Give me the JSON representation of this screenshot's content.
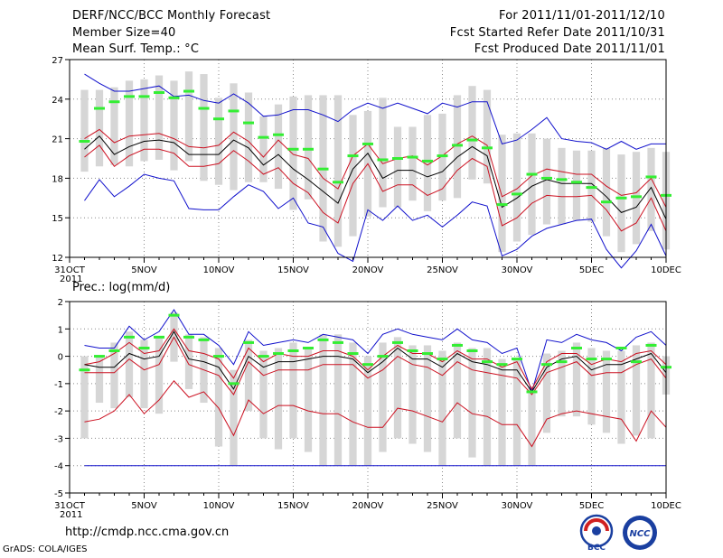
{
  "header": {
    "title": "DERF/NCC/BCC Monthly Forecast",
    "member_size": "Member Size=40",
    "variable": "Mean Surf. Temp.: °C",
    "period": "For 2011/11/01-2011/12/10",
    "started": "Fcst Started Refer Date 2011/10/31",
    "produced": "Fcst Produced Date 2011/11/01"
  },
  "footer": {
    "url": "http://cmdp.ncc.cma.gov.cn",
    "grads": "GrADS: COLA/IGES",
    "logo_left_text": "BCC",
    "logo_right_text": "NCC"
  },
  "colors": {
    "box": "#d6d6d6",
    "mean": "#000000",
    "ci": "#cc1020",
    "envelope": "#1010cc",
    "ctrl": "#33ee33"
  },
  "chart_data": [
    {
      "type": "line",
      "title": "Mean Surf. Temp.: °C",
      "x_tick_labels": [
        "31OCT",
        "5NOV",
        "10NOV",
        "15NOV",
        "20NOV",
        "25NOV",
        "30NOV",
        "5DEC",
        "10DEC"
      ],
      "x_tick_days": [
        0,
        5,
        10,
        15,
        20,
        25,
        30,
        35,
        40
      ],
      "x_sublabel": "2011",
      "x_range": [
        0,
        40
      ],
      "ylim": [
        12,
        27
      ],
      "y_ticks": [
        12,
        15,
        18,
        21,
        24,
        27
      ],
      "x": [
        1,
        2,
        3,
        4,
        5,
        6,
        7,
        8,
        9,
        10,
        11,
        12,
        13,
        14,
        15,
        16,
        17,
        18,
        19,
        20,
        21,
        22,
        23,
        24,
        25,
        26,
        27,
        28,
        29,
        30,
        31,
        32,
        33,
        34,
        35,
        36,
        37,
        38,
        39,
        40
      ],
      "series": [
        {
          "name": "Max",
          "values": [
            25.9,
            25.2,
            24.6,
            24.6,
            24.8,
            25.0,
            24.2,
            24.3,
            23.9,
            23.7,
            24.4,
            23.7,
            22.7,
            22.8,
            23.2,
            23.2,
            22.8,
            22.3,
            23.2,
            23.7,
            23.3,
            23.7,
            23.3,
            22.9,
            23.7,
            23.4,
            23.8,
            23.8,
            20.6,
            20.9,
            21.7,
            22.6,
            21.0,
            20.8,
            20.7,
            20.2,
            20.8,
            20.2,
            20.6,
            20.6
          ]
        },
        {
          "name": "Upper",
          "values": [
            21.0,
            21.7,
            20.7,
            21.2,
            21.3,
            21.4,
            21.0,
            20.4,
            20.3,
            20.5,
            21.5,
            20.8,
            19.6,
            20.9,
            19.8,
            19.5,
            18.0,
            17.2,
            19.7,
            20.6,
            19.1,
            19.5,
            19.7,
            19.0,
            19.7,
            20.6,
            21.2,
            20.5,
            16.6,
            17.2,
            18.2,
            18.7,
            18.5,
            18.3,
            18.3,
            17.4,
            16.7,
            16.9,
            18.0,
            15.8
          ]
        },
        {
          "name": "Mean",
          "values": [
            20.2,
            21.2,
            19.8,
            20.4,
            20.8,
            20.9,
            20.7,
            19.8,
            19.8,
            19.8,
            20.9,
            20.3,
            19.0,
            19.8,
            18.7,
            17.9,
            17.0,
            16.1,
            18.7,
            19.9,
            18.0,
            18.6,
            18.6,
            18.1,
            18.5,
            19.6,
            20.4,
            19.7,
            15.8,
            16.5,
            17.4,
            17.9,
            17.6,
            17.6,
            17.6,
            16.6,
            15.4,
            15.8,
            17.3,
            14.9
          ]
        },
        {
          "name": "Lower",
          "values": [
            19.6,
            20.5,
            18.9,
            19.7,
            20.2,
            20.2,
            19.9,
            18.9,
            18.9,
            19.1,
            20.1,
            19.3,
            18.3,
            18.8,
            17.6,
            16.9,
            15.4,
            14.6,
            17.6,
            19.1,
            17.0,
            17.5,
            17.5,
            16.7,
            17.2,
            18.6,
            19.5,
            18.9,
            14.4,
            15.0,
            16.1,
            16.7,
            16.6,
            16.6,
            16.7,
            15.6,
            14.0,
            14.6,
            16.5,
            14.0
          ]
        },
        {
          "name": "Min",
          "values": [
            16.3,
            17.9,
            16.6,
            17.4,
            18.3,
            18.0,
            17.8,
            15.7,
            15.6,
            15.6,
            16.6,
            17.5,
            17.0,
            15.7,
            16.5,
            14.6,
            14.3,
            12.3,
            11.7,
            15.6,
            14.8,
            15.9,
            14.8,
            15.2,
            14.3,
            15.2,
            16.2,
            15.9,
            12.1,
            12.6,
            13.6,
            14.2,
            14.5,
            14.8,
            14.9,
            12.6,
            11.2,
            12.5,
            14.5,
            12.1
          ]
        },
        {
          "name": "Ctrl",
          "values": [
            20.8,
            23.3,
            23.8,
            24.2,
            24.2,
            24.5,
            24.1,
            24.6,
            23.3,
            22.5,
            23.1,
            22.2,
            21.1,
            21.3,
            20.2,
            20.2,
            18.7,
            17.7,
            19.7,
            20.6,
            19.4,
            19.5,
            19.6,
            19.3,
            19.7,
            20.5,
            20.9,
            20.3,
            16.0,
            16.8,
            18.3,
            18.0,
            17.9,
            17.7,
            17.3,
            16.2,
            16.5,
            16.6,
            18.1,
            16.7
          ]
        },
        {
          "name": "Box high",
          "values": [
            24.7,
            24.7,
            24.9,
            25.4,
            25.5,
            25.8,
            25.4,
            26.1,
            25.9,
            24.1,
            25.2,
            24.5,
            22.7,
            23.6,
            24.2,
            24.3,
            24.3,
            24.3,
            22.8,
            23.1,
            24.1,
            21.9,
            21.9,
            22.8,
            22.9,
            24.3,
            25.0,
            24.7,
            21.3,
            21.4,
            21.4,
            21.0,
            20.3,
            20.1,
            20.1,
            20.3,
            19.8,
            20.0,
            20.3,
            20.0
          ]
        },
        {
          "name": "Box low",
          "values": [
            18.5,
            18.9,
            19.0,
            18.9,
            19.3,
            19.4,
            18.6,
            19.3,
            17.8,
            17.5,
            17.1,
            17.7,
            17.7,
            17.2,
            15.6,
            16.4,
            13.2,
            12.8,
            13.6,
            15.1,
            15.8,
            15.8,
            16.3,
            15.5,
            16.3,
            16.5,
            17.9,
            17.6,
            12.4,
            13.2,
            13.7,
            14.5,
            14.5,
            14.8,
            14.7,
            13.6,
            12.4,
            13.0,
            14.0,
            12.6
          ]
        }
      ]
    },
    {
      "type": "line",
      "title": "Prec.: log(mm/d)",
      "x_tick_labels": [
        "31OCT",
        "5NOV",
        "10NOV",
        "15NOV",
        "20NOV",
        "25NOV",
        "30NOV",
        "5DEC",
        "10DEC"
      ],
      "x_tick_days": [
        0,
        5,
        10,
        15,
        20,
        25,
        30,
        35,
        40
      ],
      "x_sublabel": "2011",
      "x_range": [
        0,
        40
      ],
      "ylim": [
        -5,
        2
      ],
      "y_ticks": [
        -5,
        -4,
        -3,
        -2,
        -1,
        0,
        1,
        2
      ],
      "x": [
        1,
        2,
        3,
        4,
        5,
        6,
        7,
        8,
        9,
        10,
        11,
        12,
        13,
        14,
        15,
        16,
        17,
        18,
        19,
        20,
        21,
        22,
        23,
        24,
        25,
        26,
        27,
        28,
        29,
        30,
        31,
        32,
        33,
        34,
        35,
        36,
        37,
        38,
        39,
        40
      ],
      "series": [
        {
          "name": "Max",
          "values": [
            0.4,
            0.3,
            0.3,
            1.1,
            0.6,
            0.9,
            1.7,
            0.8,
            0.8,
            0.4,
            -0.3,
            0.9,
            0.4,
            0.5,
            0.6,
            0.5,
            0.8,
            0.7,
            0.6,
            0.1,
            0.8,
            1.0,
            0.8,
            0.7,
            0.6,
            1.0,
            0.6,
            0.5,
            0.1,
            0.3,
            -1.3,
            0.6,
            0.5,
            0.8,
            0.6,
            0.5,
            0.2,
            0.7,
            0.9,
            0.4
          ]
        },
        {
          "name": "Upper",
          "values": [
            -0.3,
            -0.2,
            0.1,
            0.5,
            0.1,
            0.2,
            1.0,
            0.2,
            0.1,
            -0.1,
            -0.8,
            0.3,
            -0.2,
            0.1,
            0.0,
            0.0,
            0.2,
            0.2,
            0.0,
            -0.5,
            0.0,
            0.4,
            0.1,
            0.1,
            -0.2,
            0.2,
            -0.1,
            -0.1,
            -0.4,
            -0.2,
            -1.2,
            -0.2,
            0.1,
            0.1,
            -0.3,
            -0.1,
            -0.2,
            0.1,
            0.2,
            -0.3
          ]
        },
        {
          "name": "Mean",
          "values": [
            -0.3,
            -0.4,
            -0.4,
            0.1,
            -0.1,
            0.0,
            0.9,
            -0.1,
            -0.2,
            -0.4,
            -1.2,
            0.0,
            -0.4,
            -0.2,
            -0.2,
            -0.1,
            0.0,
            0.0,
            -0.1,
            -0.6,
            -0.2,
            0.3,
            -0.1,
            -0.1,
            -0.4,
            0.1,
            -0.2,
            -0.3,
            -0.5,
            -0.5,
            -1.3,
            -0.4,
            -0.1,
            0.0,
            -0.5,
            -0.3,
            -0.3,
            -0.1,
            0.1,
            -0.6
          ]
        },
        {
          "name": "Lower",
          "values": [
            -0.6,
            -0.6,
            -0.6,
            -0.1,
            -0.5,
            -0.3,
            0.7,
            -0.3,
            -0.5,
            -0.7,
            -1.4,
            -0.2,
            -0.7,
            -0.5,
            -0.5,
            -0.5,
            -0.3,
            -0.3,
            -0.3,
            -0.8,
            -0.5,
            0.0,
            -0.3,
            -0.4,
            -0.7,
            -0.2,
            -0.5,
            -0.6,
            -0.7,
            -0.8,
            -1.4,
            -0.6,
            -0.4,
            -0.2,
            -0.7,
            -0.6,
            -0.6,
            -0.3,
            -0.1,
            -0.8
          ]
        },
        {
          "name": "Min",
          "values": [
            -4,
            -4,
            -4,
            -4,
            -4,
            -4,
            -4,
            -4,
            -4,
            -4,
            -4,
            -4,
            -4,
            -4,
            -4,
            -4,
            -4,
            -4,
            -4,
            -4,
            -4,
            -4,
            -4,
            -4,
            -4,
            -4,
            -4,
            -4,
            -4,
            -4,
            -4,
            -4,
            -4,
            -4,
            -4,
            -4,
            -4,
            -4,
            -4,
            -4
          ]
        },
        {
          "name": "P10",
          "values": [
            -2.4,
            -2.3,
            -2.0,
            -1.4,
            -2.1,
            -1.6,
            -0.9,
            -1.5,
            -1.3,
            -1.9,
            -2.9,
            -1.6,
            -2.1,
            -1.8,
            -1.8,
            -2.0,
            -2.1,
            -2.1,
            -2.4,
            -2.6,
            -2.6,
            -1.9,
            -2.0,
            -2.2,
            -2.4,
            -1.7,
            -2.1,
            -2.2,
            -2.5,
            -2.5,
            -3.3,
            -2.3,
            -2.1,
            -2.0,
            -2.1,
            -2.2,
            -2.3,
            -3.1,
            -2.0,
            -2.6
          ]
        },
        {
          "name": "Ctrl",
          "values": [
            -0.5,
            0.0,
            0.2,
            0.7,
            0.3,
            0.7,
            1.5,
            0.7,
            0.6,
            0.0,
            -1.0,
            0.5,
            0.0,
            0.1,
            0.2,
            0.3,
            0.6,
            0.5,
            0.1,
            -0.3,
            0.0,
            0.5,
            0.2,
            0.1,
            -0.1,
            0.4,
            0.2,
            -0.2,
            -0.3,
            -0.1,
            -1.3,
            -0.3,
            -0.2,
            0.3,
            -0.1,
            -0.1,
            0.3,
            -0.2,
            0.4,
            -0.4
          ]
        },
        {
          "name": "Box high",
          "values": [
            0.0,
            0.0,
            0.5,
            0.9,
            0.6,
            0.7,
            1.6,
            0.8,
            0.7,
            0.3,
            -0.5,
            0.6,
            0.2,
            0.3,
            0.5,
            0.3,
            0.8,
            0.8,
            0.5,
            0.0,
            0.5,
            0.7,
            0.4,
            0.4,
            0.2,
            0.5,
            0.3,
            0.3,
            -0.1,
            -0.1,
            -1.1,
            0.1,
            0.2,
            0.5,
            0.3,
            0.2,
            0.2,
            0.4,
            0.5,
            0.0
          ]
        },
        {
          "name": "Box low",
          "values": [
            -3.0,
            -1.7,
            -1.9,
            -1.5,
            -1.9,
            -2.1,
            -0.2,
            -1.2,
            -1.7,
            -3.3,
            -4.0,
            -2.0,
            -3.0,
            -3.4,
            -3.0,
            -3.5,
            -4.0,
            -4.0,
            -4.0,
            -4.0,
            -3.5,
            -3.0,
            -3.2,
            -3.5,
            -4.0,
            -3.0,
            -3.7,
            -4.0,
            -4.0,
            -4.0,
            -4.0,
            -2.8,
            -2.2,
            -2.2,
            -2.5,
            -2.8,
            -3.2,
            -2.9,
            -3.0,
            -1.4
          ]
        }
      ]
    }
  ]
}
